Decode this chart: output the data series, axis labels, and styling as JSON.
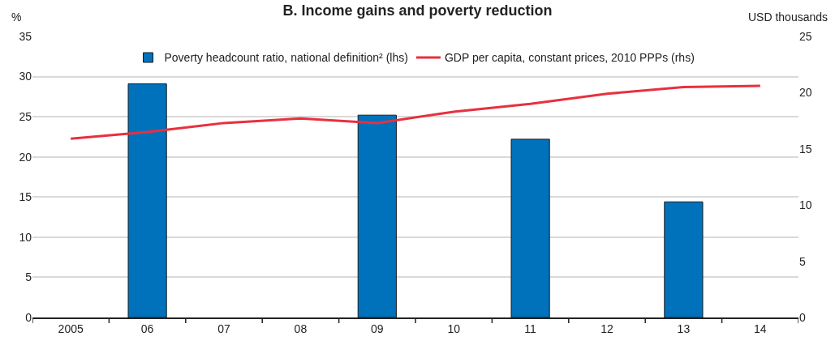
{
  "chart_data": {
    "type": "bar",
    "title": "B. Income gains and poverty reduction",
    "ylabel": "%",
    "y2label": "USD thousands",
    "categories": [
      "2005",
      "06",
      "07",
      "08",
      "09",
      "10",
      "11",
      "12",
      "13",
      "14"
    ],
    "series": [
      {
        "name": "Poverty headcount ratio, national definition² (lhs)",
        "color": "#0072bc",
        "values": [
          null,
          29.1,
          null,
          null,
          25.2,
          null,
          22.2,
          null,
          14.4,
          null
        ]
      },
      {
        "name": "GDP per capita, constant prices, 2010 PPPs (rhs)",
        "type": "line",
        "axis": "y2",
        "color": "#e8303e",
        "values": [
          15.9,
          16.5,
          17.3,
          17.7,
          17.3,
          18.3,
          19.0,
          19.9,
          20.5,
          20.6
        ]
      }
    ],
    "ylim": [
      0,
      35
    ],
    "yticks": [
      0,
      5,
      10,
      15,
      20,
      25,
      30,
      35
    ],
    "y2lim": [
      0,
      25
    ],
    "y2ticks": [
      0,
      5,
      10,
      15,
      20,
      25
    ],
    "grid": "y",
    "legend": "top",
    "marker": "none",
    "line_style": "solid"
  }
}
